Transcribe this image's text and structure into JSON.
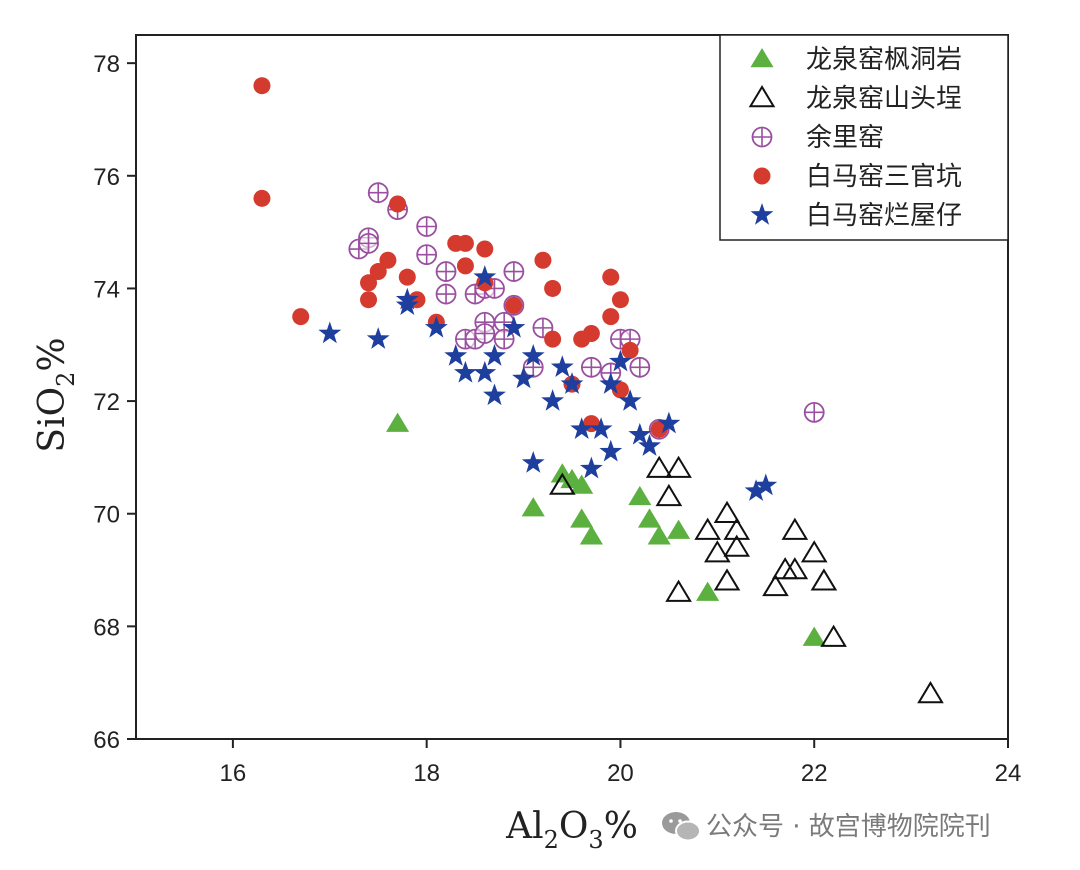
{
  "chart_data": {
    "type": "scatter",
    "title": "",
    "xlabel": {
      "main": "Al",
      "sub1": "2",
      "mid": "O",
      "sub2": "3",
      "suffix": "%"
    },
    "ylabel": {
      "main": "SiO",
      "sub": "2",
      "suffix": "%"
    },
    "xlim": [
      15,
      24
    ],
    "ylim": [
      66,
      78.5
    ],
    "xticks": [
      16,
      18,
      20,
      22,
      24
    ],
    "yticks": [
      66,
      68,
      70,
      72,
      74,
      76,
      78
    ],
    "grid": false,
    "legend_position": "top-right",
    "series": [
      {
        "name": "龙泉窑枫洞岩",
        "marker": "triangle-filled",
        "color": "#5cb040",
        "points": [
          [
            17.7,
            71.6
          ],
          [
            19.1,
            70.1
          ],
          [
            19.4,
            70.7
          ],
          [
            19.5,
            70.6
          ],
          [
            19.6,
            70.5
          ],
          [
            19.6,
            69.9
          ],
          [
            19.7,
            69.6
          ],
          [
            20.2,
            70.3
          ],
          [
            20.3,
            69.9
          ],
          [
            20.4,
            69.6
          ],
          [
            20.6,
            69.7
          ],
          [
            20.9,
            68.6
          ],
          [
            22.0,
            67.8
          ]
        ]
      },
      {
        "name": "龙泉窑山头埕",
        "marker": "triangle-open",
        "color": "#111111",
        "points": [
          [
            19.4,
            70.5
          ],
          [
            20.4,
            70.8
          ],
          [
            20.5,
            70.3
          ],
          [
            20.6,
            70.8
          ],
          [
            20.6,
            68.6
          ],
          [
            20.9,
            69.7
          ],
          [
            21.0,
            69.3
          ],
          [
            21.1,
            70.0
          ],
          [
            21.2,
            69.7
          ],
          [
            21.2,
            69.4
          ],
          [
            21.1,
            68.8
          ],
          [
            21.6,
            68.7
          ],
          [
            21.7,
            69.0
          ],
          [
            21.8,
            69.7
          ],
          [
            21.8,
            69.0
          ],
          [
            22.0,
            69.3
          ],
          [
            22.1,
            68.8
          ],
          [
            22.2,
            67.8
          ],
          [
            23.2,
            66.8
          ]
        ]
      },
      {
        "name": "余里窑",
        "marker": "circle-plus",
        "color": "#9a4fa0",
        "points": [
          [
            17.3,
            74.7
          ],
          [
            17.4,
            74.9
          ],
          [
            17.4,
            74.8
          ],
          [
            17.5,
            75.7
          ],
          [
            17.7,
            75.4
          ],
          [
            18.0,
            74.6
          ],
          [
            18.0,
            75.1
          ],
          [
            18.2,
            74.3
          ],
          [
            18.2,
            73.9
          ],
          [
            18.4,
            73.1
          ],
          [
            18.5,
            73.9
          ],
          [
            18.5,
            73.1
          ],
          [
            18.6,
            74.0
          ],
          [
            18.6,
            73.4
          ],
          [
            18.6,
            73.2
          ],
          [
            18.7,
            74.0
          ],
          [
            18.8,
            73.4
          ],
          [
            18.8,
            73.1
          ],
          [
            18.9,
            74.3
          ],
          [
            18.9,
            73.7
          ],
          [
            19.1,
            72.6
          ],
          [
            19.2,
            73.3
          ],
          [
            19.7,
            72.6
          ],
          [
            19.9,
            72.5
          ],
          [
            20.0,
            73.1
          ],
          [
            20.1,
            73.1
          ],
          [
            20.2,
            72.6
          ],
          [
            20.4,
            71.5
          ],
          [
            22.0,
            71.8
          ]
        ]
      },
      {
        "name": "白马窑三官坑",
        "marker": "circle-filled",
        "color": "#d43a2e",
        "points": [
          [
            16.3,
            75.6
          ],
          [
            16.3,
            77.6
          ],
          [
            16.7,
            73.5
          ],
          [
            17.4,
            73.8
          ],
          [
            17.4,
            74.1
          ],
          [
            17.5,
            74.3
          ],
          [
            17.6,
            74.5
          ],
          [
            17.7,
            75.5
          ],
          [
            17.8,
            74.2
          ],
          [
            17.9,
            73.8
          ],
          [
            18.1,
            73.4
          ],
          [
            18.3,
            74.8
          ],
          [
            18.4,
            74.8
          ],
          [
            18.4,
            74.4
          ],
          [
            18.6,
            74.7
          ],
          [
            18.6,
            74.1
          ],
          [
            18.9,
            73.7
          ],
          [
            19.2,
            74.5
          ],
          [
            19.3,
            74.0
          ],
          [
            19.3,
            73.1
          ],
          [
            19.5,
            72.3
          ],
          [
            19.6,
            73.1
          ],
          [
            19.7,
            73.2
          ],
          [
            19.7,
            71.6
          ],
          [
            19.9,
            74.2
          ],
          [
            19.9,
            73.5
          ],
          [
            20.0,
            73.8
          ],
          [
            20.0,
            72.2
          ],
          [
            20.1,
            72.9
          ],
          [
            20.4,
            71.5
          ]
        ]
      },
      {
        "name": "白马窑烂屋仔",
        "marker": "star",
        "color": "#1f3f9e",
        "points": [
          [
            17.0,
            73.2
          ],
          [
            17.5,
            73.1
          ],
          [
            17.8,
            73.8
          ],
          [
            17.8,
            73.7
          ],
          [
            18.1,
            73.3
          ],
          [
            18.3,
            72.8
          ],
          [
            18.4,
            72.5
          ],
          [
            18.6,
            74.2
          ],
          [
            18.6,
            72.5
          ],
          [
            18.7,
            72.1
          ],
          [
            18.7,
            72.8
          ],
          [
            18.9,
            73.3
          ],
          [
            19.0,
            72.4
          ],
          [
            19.1,
            72.8
          ],
          [
            19.1,
            70.9
          ],
          [
            19.3,
            72.0
          ],
          [
            19.4,
            72.6
          ],
          [
            19.5,
            72.3
          ],
          [
            19.6,
            71.5
          ],
          [
            19.7,
            70.8
          ],
          [
            19.8,
            71.5
          ],
          [
            19.9,
            72.3
          ],
          [
            19.9,
            71.1
          ],
          [
            20.0,
            72.7
          ],
          [
            20.1,
            72.0
          ],
          [
            20.2,
            71.4
          ],
          [
            20.3,
            71.2
          ],
          [
            20.5,
            71.6
          ],
          [
            21.4,
            70.4
          ],
          [
            21.5,
            70.5
          ]
        ]
      }
    ]
  },
  "watermark": {
    "icon": "wechat-icon",
    "text": "公众号 · 故宫博物院院刊"
  }
}
